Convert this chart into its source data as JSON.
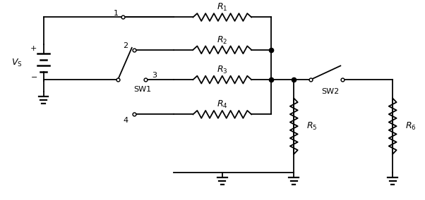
{
  "bg_color": "#ffffff",
  "line_color": "#000000",
  "lw": 1.3,
  "figsize": [
    6.02,
    2.84
  ],
  "dpi": 100,
  "xlim": [
    0,
    6.02
  ],
  "ylim": [
    0,
    2.84
  ]
}
